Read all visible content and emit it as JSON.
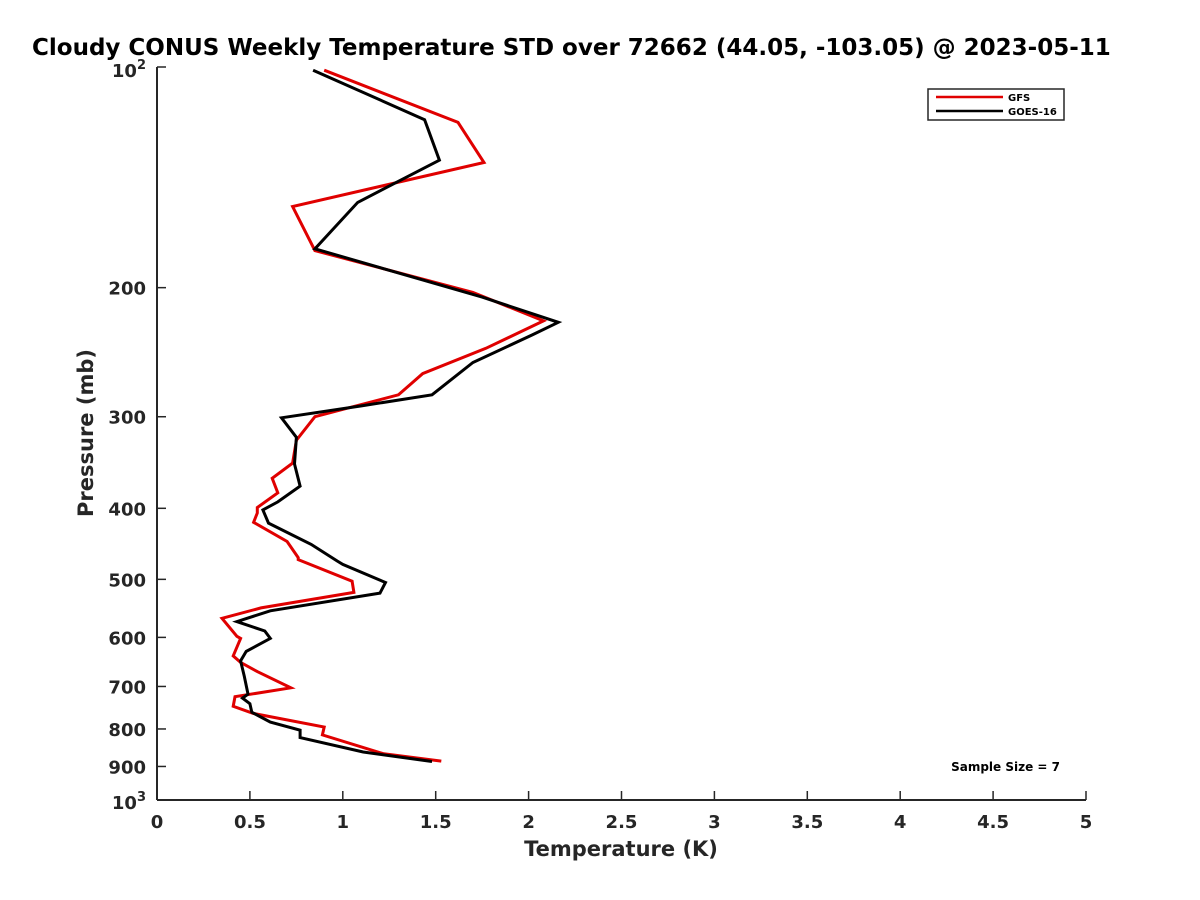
{
  "chart_data": {
    "type": "line",
    "title": "Cloudy CONUS Weekly Temperature STD over 72662 (44.05, -103.05) @ 2023-05-11",
    "xlabel": "Temperature (K)",
    "ylabel": "Pressure (mb)",
    "xlim": [
      0,
      5
    ],
    "ylim": [
      100,
      1000
    ],
    "y_scale": "log",
    "y_reversed": true,
    "x_ticks": [
      0,
      0.5,
      1,
      1.5,
      2,
      2.5,
      3,
      3.5,
      4,
      4.5,
      5
    ],
    "x_tick_labels": [
      "0",
      "0.5",
      "1",
      "1.5",
      "2",
      "2.5",
      "3",
      "3.5",
      "4",
      "4.5",
      "5"
    ],
    "y_ticks": [
      200,
      300,
      400,
      500,
      600,
      700,
      800,
      900
    ],
    "y_tick_labels": [
      "200",
      "300",
      "400",
      "500",
      "600",
      "700",
      "800",
      "900"
    ],
    "y_limit_labels": {
      "top_base": "10",
      "top_exp": "2",
      "bottom_base": "10",
      "bottom_exp": "3"
    },
    "grid": false,
    "legend_position": "top-right",
    "annotation": "Sample Size = 7",
    "series": [
      {
        "name": "GFS",
        "color": "#e00000",
        "x": [
          0.9,
          1.62,
          1.76,
          0.73,
          0.85,
          1.7,
          2.08,
          1.77,
          1.43,
          1.3,
          0.85,
          0.75,
          0.73,
          0.62,
          0.65,
          0.54,
          0.54,
          0.52,
          0.7,
          0.76,
          0.76,
          1.05,
          1.06,
          0.56,
          0.35,
          0.43,
          0.45,
          0.41,
          0.45,
          0.54,
          0.72,
          0.42,
          0.41,
          0.52,
          0.9,
          0.89,
          1.22,
          1.53
        ],
        "y": [
          101,
          119,
          135,
          155,
          178,
          203,
          222,
          242,
          262,
          280,
          300,
          323,
          347,
          364,
          381,
          399,
          406,
          418,
          444,
          467,
          470,
          503,
          521,
          547,
          565,
          598,
          602,
          636,
          649,
          668,
          703,
          723,
          745,
          762,
          795,
          815,
          865,
          885
        ]
      },
      {
        "name": "GOES-16",
        "color": "#000000",
        "x": [
          0.84,
          1.44,
          1.52,
          1.08,
          0.85,
          1.75,
          2.16,
          2.02,
          1.7,
          1.48,
          1.1,
          0.67,
          0.75,
          0.74,
          0.77,
          0.65,
          0.57,
          0.6,
          0.83,
          0.97,
          1.0,
          1.23,
          1.2,
          0.61,
          0.43,
          0.58,
          0.61,
          0.48,
          0.45,
          0.47,
          0.49,
          0.46,
          0.5,
          0.51,
          0.61,
          0.77,
          0.77,
          1.11,
          1.48
        ],
        "y": [
          101,
          118,
          134,
          153,
          177,
          206,
          223,
          232,
          253,
          280,
          290,
          301,
          320,
          348,
          373,
          392,
          402,
          419,
          448,
          472,
          477,
          505,
          522,
          552,
          571,
          588,
          602,
          627,
          646,
          678,
          717,
          726,
          739,
          759,
          783,
          803,
          822,
          860,
          886
        ]
      }
    ]
  }
}
